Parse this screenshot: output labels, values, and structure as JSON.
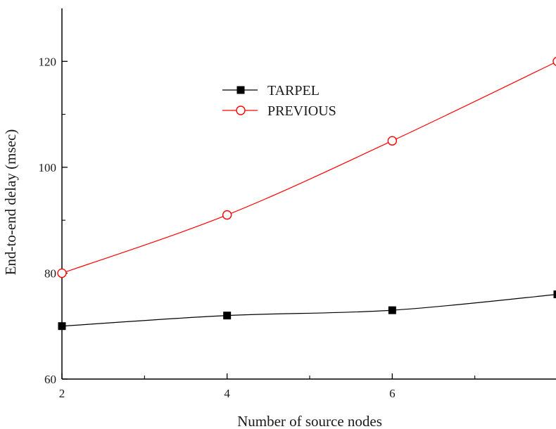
{
  "chart_data": {
    "type": "line",
    "title": "",
    "xlabel": "Number of source nodes",
    "ylabel": "End-to-end delay (msec)",
    "x": [
      2,
      4,
      6,
      8
    ],
    "xlim": [
      2,
      8
    ],
    "ylim": [
      60,
      130
    ],
    "x_ticks": [
      2,
      4,
      6
    ],
    "x_minor_ticks": [
      3,
      5,
      7
    ],
    "y_ticks": [
      60,
      80,
      100,
      120
    ],
    "y_minor_ticks": [
      70,
      90,
      110
    ],
    "grid": false,
    "legend_position": "upper-left-center",
    "series": [
      {
        "name": "TARPEL",
        "values": [
          70,
          72,
          73,
          76
        ],
        "color": "#000000",
        "marker": "filled-square"
      },
      {
        "name": "PREVIOUS",
        "values": [
          80,
          91,
          105,
          120
        ],
        "color": "#ff0000",
        "marker": "open-circle"
      }
    ]
  }
}
